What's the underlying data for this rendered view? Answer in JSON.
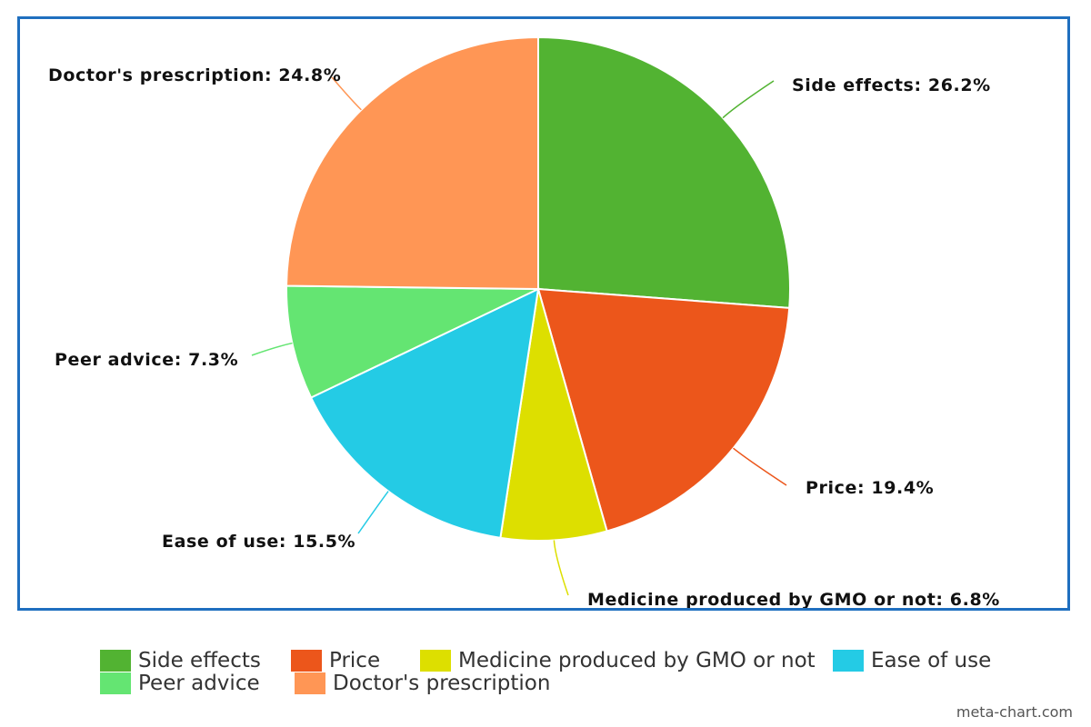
{
  "chart_data": {
    "type": "pie",
    "slices": [
      {
        "name": "Side effects",
        "value": 26.2,
        "label": "Side effects: 26.2%",
        "color": "#52b332"
      },
      {
        "name": "Price",
        "value": 19.4,
        "label": "Price: 19.4%",
        "color": "#ec561b"
      },
      {
        "name": "Medicine produced by GMO or not",
        "value": 6.8,
        "label": "Medicine produced by GMO or not: 6.8%",
        "color": "#dddf00"
      },
      {
        "name": "Ease of use",
        "value": 15.5,
        "label": "Ease of use: 15.5%",
        "color": "#24cbe5"
      },
      {
        "name": "Peer advice",
        "value": 7.3,
        "label": "Peer advice: 7.3%",
        "color": "#64e572"
      },
      {
        "name": "Doctor's prescription",
        "value": 24.8,
        "label": "Doctor's prescription: 24.8%",
        "color": "#ff9655"
      }
    ],
    "legend_placement": "bottom"
  },
  "credit": "meta-chart.com"
}
